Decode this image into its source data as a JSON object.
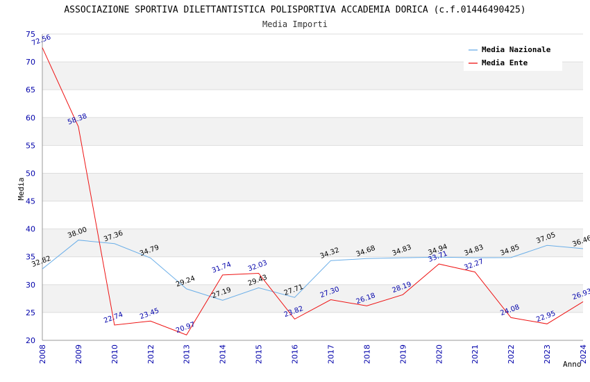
{
  "chart_data": {
    "type": "line",
    "title": "ASSOCIAZIONE SPORTIVA DILETTANTISTICA POLISPORTIVA ACCADEMIA DORICA (c.f.01446490425)",
    "subtitle": "Media Importi",
    "xlabel": "Anno",
    "ylabel": "Media",
    "ylim": [
      20,
      75
    ],
    "yticks": [
      "20",
      "25",
      "30",
      "35",
      "40",
      "45",
      "50",
      "55",
      "60",
      "65",
      "70",
      "75"
    ],
    "x": [
      "2008",
      "2009",
      "2010",
      "2012",
      "2013",
      "2014",
      "2015",
      "2016",
      "2017",
      "2018",
      "2019",
      "2020",
      "2021",
      "2022",
      "2023",
      "2024"
    ],
    "grid": "horizontal bands",
    "legend_position": "top-right",
    "series": [
      {
        "name": "Media Nazionale",
        "color": "#6aaee8",
        "label_color": "#000000",
        "values": [
          32.82,
          38.0,
          37.36,
          34.79,
          29.24,
          27.19,
          29.43,
          27.71,
          34.32,
          34.68,
          34.83,
          34.94,
          34.83,
          34.85,
          37.05,
          36.46
        ],
        "labels": [
          "32.82",
          "38.00",
          "37.36",
          "34.79",
          "29.24",
          "27.19",
          "29.43",
          "27.71",
          "34.32",
          "34.68",
          "34.83",
          "34.94",
          "34.83",
          "34.85",
          "37.05",
          "36.46"
        ]
      },
      {
        "name": "Media Ente",
        "color": "#ee1111",
        "label_color": "#0000aa",
        "values": [
          72.56,
          58.38,
          22.74,
          23.45,
          20.97,
          31.74,
          32.03,
          23.82,
          27.3,
          26.18,
          28.19,
          33.71,
          32.27,
          24.08,
          22.95,
          26.93
        ],
        "labels": [
          "72.56",
          "58.38",
          "22.74",
          "23.45",
          "20.97",
          "31.74",
          "32.03",
          "23.82",
          "27.30",
          "26.18",
          "28.19",
          "33.71",
          "32.27",
          "24.08",
          "22.95",
          "26.93"
        ]
      }
    ]
  }
}
